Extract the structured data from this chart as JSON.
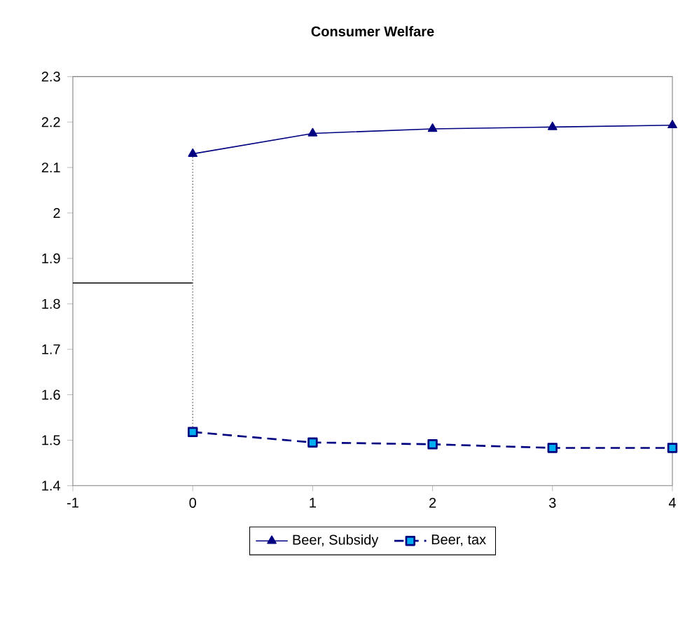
{
  "chart_data": {
    "type": "line",
    "title": "Consumer Welfare",
    "xlim": [
      -1,
      4
    ],
    "xticks": [
      -1,
      0,
      1,
      2,
      3,
      4
    ],
    "ylim": [
      1.4,
      2.3
    ],
    "yticks": [
      1.4,
      1.5,
      1.6,
      1.7,
      1.8,
      1.9,
      2,
      2.1,
      2.2,
      2.3
    ],
    "series": [
      {
        "name": "Beer, Subsidy",
        "color": "#000080",
        "marker": "triangle",
        "line_style": "solid",
        "x": [
          0,
          1,
          2,
          3,
          4
        ],
        "values": [
          2.13,
          2.175,
          2.185,
          2.189,
          2.193
        ]
      },
      {
        "name": "Beer, tax",
        "color": "#000080",
        "marker": "square",
        "line_style": "dashed",
        "x": [
          0,
          1,
          2,
          3,
          4
        ],
        "values": [
          1.518,
          1.495,
          1.491,
          1.483,
          1.483
        ]
      },
      {
        "color": "#000000",
        "marker": "none",
        "line_style": "solid",
        "x": [
          -1,
          0
        ],
        "values": [
          1.846,
          1.846
        ]
      },
      {
        "color": "#808080",
        "marker": "none",
        "line_style": "dotted",
        "x": [
          0,
          0
        ],
        "values": [
          2.13,
          1.518
        ]
      }
    ],
    "legend": "bottom"
  }
}
